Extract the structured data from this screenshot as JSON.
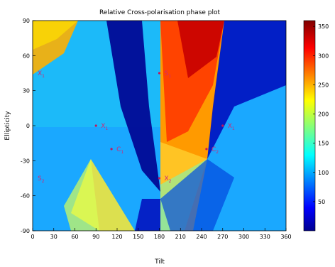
{
  "chart_data": {
    "type": "heatmap",
    "title": "Relative Cross-polarisation phase plot",
    "xlabel": "Tilt",
    "ylabel": "Ellipticity",
    "xlim": [
      0,
      360
    ],
    "ylim": [
      -90,
      90
    ],
    "x_ticks": [
      0,
      30,
      60,
      90,
      120,
      150,
      180,
      210,
      240,
      270,
      300,
      330,
      360
    ],
    "y_ticks": [
      -90,
      -60,
      -30,
      0,
      30,
      60,
      90
    ],
    "colorbar": {
      "range": [
        0,
        360
      ],
      "ticks": [
        {
          "value": 50,
          "label": "50"
        },
        {
          "value": 100,
          "label": "100"
        },
        {
          "value": 150,
          "label": "150"
        },
        {
          "value": 200,
          "label": "200"
        },
        {
          "value": 250,
          "label": "250"
        },
        {
          "value": 300,
          "label": "300"
        },
        {
          "value": 350,
          "label": "350"
        }
      ],
      "colormap": "jet"
    },
    "annotations": [
      {
        "text": "X",
        "sub": "1",
        "x": 0,
        "y": 45,
        "dot": false
      },
      {
        "text": "X",
        "sub": "1",
        "x": 90,
        "y": 0,
        "dot": true
      },
      {
        "text": "X",
        "sub": "1",
        "x": 270,
        "y": 0,
        "dot": true
      },
      {
        "text": "S",
        "sub": "1",
        "x": 180,
        "y": 45,
        "dot": true
      },
      {
        "text": "S",
        "sub": "2",
        "x": 0,
        "y": -45,
        "dot": false
      },
      {
        "text": "C",
        "sub": "1",
        "x": 112,
        "y": -20,
        "dot": true
      },
      {
        "text": "C",
        "sub": "2",
        "x": 247,
        "y": -20,
        "dot": true
      },
      {
        "text": "X",
        "sub": "2",
        "x": 180,
        "y": -45,
        "dot": true
      }
    ]
  }
}
